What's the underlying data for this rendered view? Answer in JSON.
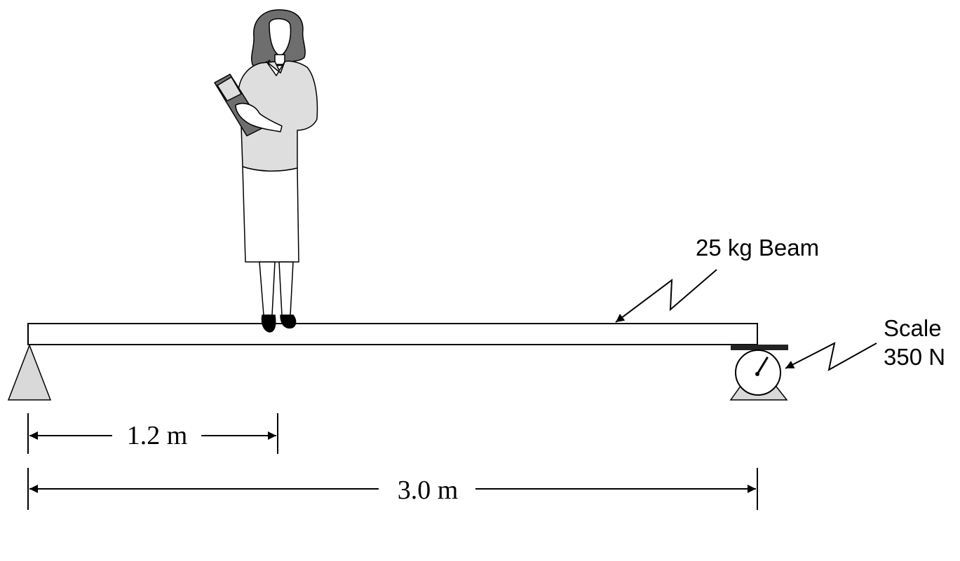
{
  "labels": {
    "beam": "25 kg Beam",
    "scale_title": "Scale",
    "scale_reading": "350 N",
    "dim_person": "1.2 m",
    "dim_total": "3.0 m"
  },
  "colors": {
    "ink": "#000000",
    "support_fill": "#d9d9d9",
    "clothing_fill": "#dedede",
    "book_fill": "#6e6e6e",
    "scale_plate": "#222222"
  },
  "icons": {
    "person": "woman-holding-book-icon",
    "pivot": "triangle-pivot-icon",
    "scale": "dial-scale-icon"
  }
}
